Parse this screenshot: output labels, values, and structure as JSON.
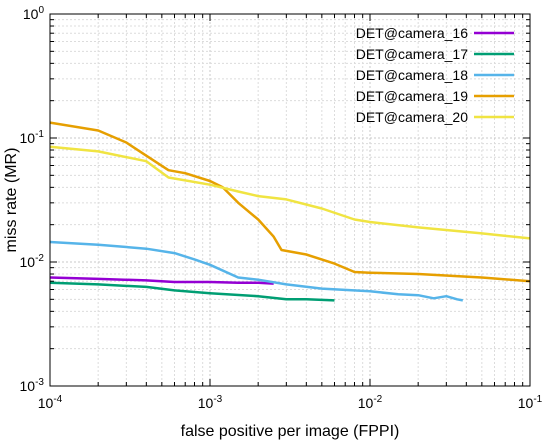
{
  "chart_data": {
    "type": "line",
    "xlabel": "false positive per image (FPPI)",
    "ylabel": "miss rate (MR)",
    "xscale": "log",
    "yscale": "log",
    "xlim": [
      0.0001,
      0.1
    ],
    "ylim": [
      0.001,
      1
    ],
    "grid": true,
    "legend": "top-right",
    "x_ticks": [
      {
        "value": 0.0001,
        "base": "10",
        "exp": "-4"
      },
      {
        "value": 0.001,
        "base": "10",
        "exp": "-3"
      },
      {
        "value": 0.01,
        "base": "10",
        "exp": "-2"
      },
      {
        "value": 0.1,
        "base": "10",
        "exp": "-1"
      }
    ],
    "y_ticks": [
      {
        "value": 0.001,
        "base": "10",
        "exp": "-3"
      },
      {
        "value": 0.01,
        "base": "10",
        "exp": "-2"
      },
      {
        "value": 0.1,
        "base": "10",
        "exp": "-1"
      },
      {
        "value": 1,
        "base": "10",
        "exp": "0"
      }
    ],
    "series": [
      {
        "name": "DET@camera_16",
        "color": "#9400d3",
        "points": [
          [
            0.0001,
            0.0075
          ],
          [
            0.0002,
            0.0073
          ],
          [
            0.0004,
            0.0071
          ],
          [
            0.0006,
            0.0069
          ],
          [
            0.001,
            0.0069
          ],
          [
            0.0015,
            0.0068
          ],
          [
            0.002,
            0.0068
          ],
          [
            0.0025,
            0.0067
          ]
        ]
      },
      {
        "name": "DET@camera_17",
        "color": "#009e73",
        "points": [
          [
            0.0001,
            0.0068
          ],
          [
            0.0002,
            0.0066
          ],
          [
            0.0004,
            0.0063
          ],
          [
            0.0006,
            0.0059
          ],
          [
            0.001,
            0.0056
          ],
          [
            0.002,
            0.0053
          ],
          [
            0.003,
            0.005
          ],
          [
            0.004,
            0.005
          ],
          [
            0.006,
            0.0049
          ]
        ]
      },
      {
        "name": "DET@camera_18",
        "color": "#56b4e9",
        "points": [
          [
            0.0001,
            0.0145
          ],
          [
            0.0002,
            0.0138
          ],
          [
            0.0004,
            0.0128
          ],
          [
            0.0006,
            0.0118
          ],
          [
            0.0008,
            0.0105
          ],
          [
            0.001,
            0.0095
          ],
          [
            0.0015,
            0.0075
          ],
          [
            0.002,
            0.0072
          ],
          [
            0.003,
            0.0066
          ],
          [
            0.005,
            0.0061
          ],
          [
            0.01,
            0.0058
          ],
          [
            0.015,
            0.0055
          ],
          [
            0.02,
            0.0054
          ],
          [
            0.025,
            0.0051
          ],
          [
            0.03,
            0.0053
          ],
          [
            0.035,
            0.005
          ],
          [
            0.038,
            0.0049
          ]
        ]
      },
      {
        "name": "DET@camera_19",
        "color": "#e69f00",
        "points": [
          [
            0.0001,
            0.133
          ],
          [
            0.0002,
            0.115
          ],
          [
            0.0003,
            0.092
          ],
          [
            0.0004,
            0.072
          ],
          [
            0.00055,
            0.055
          ],
          [
            0.0007,
            0.052
          ],
          [
            0.001,
            0.045
          ],
          [
            0.0012,
            0.04
          ],
          [
            0.0015,
            0.03
          ],
          [
            0.002,
            0.022
          ],
          [
            0.0025,
            0.016
          ],
          [
            0.0028,
            0.0125
          ],
          [
            0.004,
            0.0115
          ],
          [
            0.006,
            0.0097
          ],
          [
            0.008,
            0.0083
          ],
          [
            0.01,
            0.0082
          ],
          [
            0.02,
            0.008
          ],
          [
            0.05,
            0.0075
          ],
          [
            0.1,
            0.007
          ]
        ]
      },
      {
        "name": "DET@camera_20",
        "color": "#f0e442",
        "points": [
          [
            0.0001,
            0.085
          ],
          [
            0.0002,
            0.078
          ],
          [
            0.0004,
            0.065
          ],
          [
            0.00055,
            0.048
          ],
          [
            0.001,
            0.042
          ],
          [
            0.0015,
            0.037
          ],
          [
            0.002,
            0.034
          ],
          [
            0.003,
            0.032
          ],
          [
            0.005,
            0.027
          ],
          [
            0.008,
            0.022
          ],
          [
            0.01,
            0.021
          ],
          [
            0.02,
            0.019
          ],
          [
            0.05,
            0.017
          ],
          [
            0.1,
            0.0155
          ]
        ]
      }
    ]
  }
}
